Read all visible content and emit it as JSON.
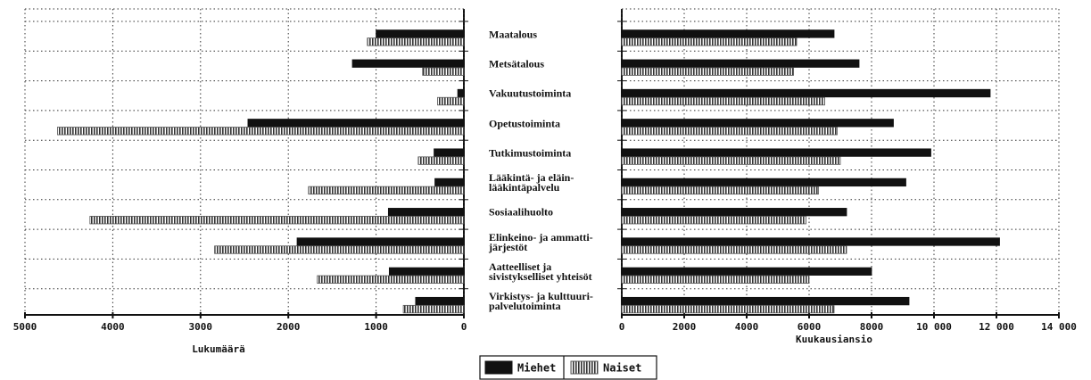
{
  "chart_data": [
    {
      "type": "bar",
      "orientation": "horizontal",
      "xlabel": "Lukumäärä",
      "categories": [
        "Maatalous",
        "Metsätalous",
        "Vakuutustoiminta",
        "Opetustoiminta",
        "Tutkimustoiminta",
        "Lääkintä- ja eläin-\nlääkintäpalvelu",
        "Sosiaalihuolto",
        "Elinkeino- ja ammatti-\njärjestöt",
        "Aatteelliset ja\nsivistykselliset yhteisöt",
        "Virkistys- ja kulttuuri-\npalvelutoiminta"
      ],
      "series": [
        {
          "name": "Miehet",
          "color": "#111111",
          "values": [
            1000,
            1270,
            70,
            2460,
            340,
            330,
            860,
            1900,
            850,
            550
          ]
        },
        {
          "name": "Naiset",
          "color": "#555555",
          "pattern": "striped",
          "values": [
            1100,
            470,
            300,
            4630,
            520,
            1770,
            4260,
            2840,
            1670,
            690
          ]
        }
      ],
      "xlim": [
        5000,
        0
      ],
      "xticks": [
        5000,
        4000,
        3000,
        2000,
        1000,
        0
      ],
      "grid": true
    },
    {
      "type": "bar",
      "orientation": "horizontal",
      "xlabel": "Kuukausiansio",
      "series": [
        {
          "color": "#111111",
          "values": [
            6800,
            7600,
            11800,
            8700,
            9900,
            9100,
            7200,
            12100,
            8000,
            9200
          ]
        },
        {
          "color": "#555555",
          "pattern": "striped",
          "values": [
            5600,
            5500,
            6500,
            6900,
            7000,
            6300,
            5900,
            7200,
            6000,
            6800
          ]
        }
      ],
      "xlim": [
        0,
        14000
      ],
      "xticks": [
        0,
        2000,
        4000,
        6000,
        8000,
        {
          "value": 10000,
          "label": "10 000"
        },
        {
          "value": 12000,
          "label": "12 000"
        },
        {
          "value": 14000,
          "label": "14 000"
        }
      ],
      "grid": true
    }
  ]
}
